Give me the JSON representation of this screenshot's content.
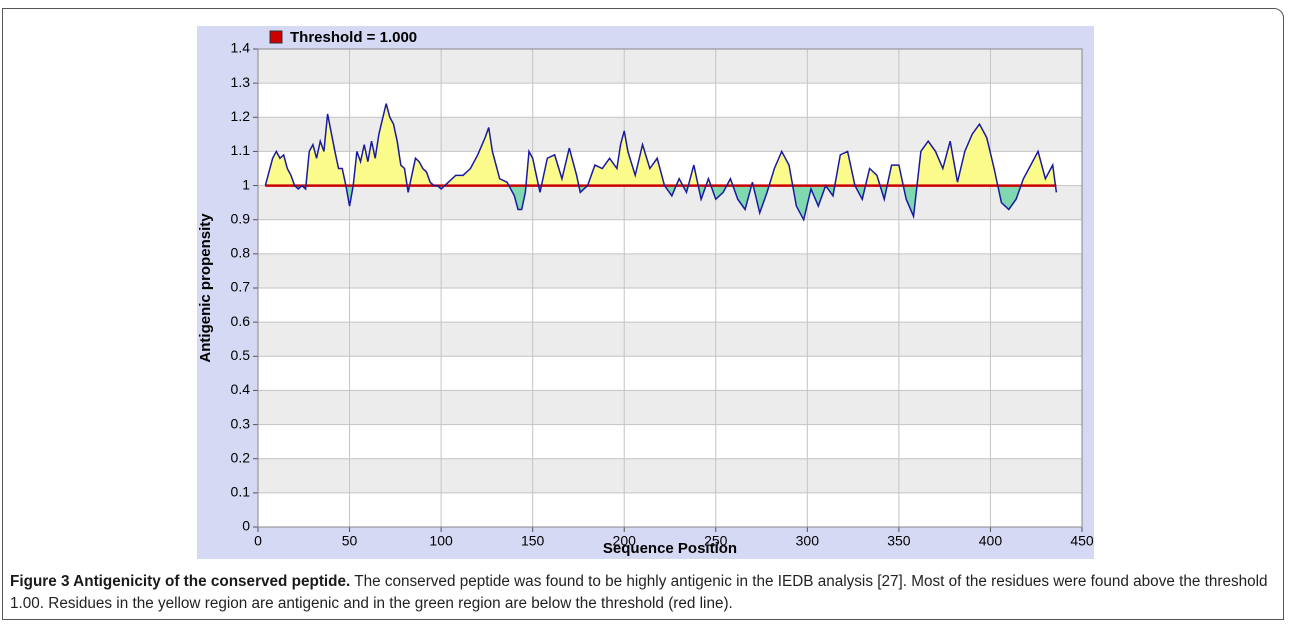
{
  "chart_data": {
    "type": "line",
    "x_label": "Sequence Position",
    "y_label": "Antigenic propensity",
    "xlim": [
      0,
      450
    ],
    "xticks": [
      0,
      50,
      100,
      150,
      200,
      250,
      300,
      350,
      400,
      450
    ],
    "ylim": [
      0,
      1.4
    ],
    "yticks": [
      0,
      0.1,
      0.2,
      0.3,
      0.4,
      0.5,
      0.6,
      0.7,
      0.8,
      0.9,
      1,
      1.1,
      1.2,
      1.3,
      1.4
    ],
    "grid": true,
    "threshold": {
      "name": "Threshold  = 1.000",
      "value": 1,
      "color": "#cc0000"
    },
    "line_color": "#1a1aa0",
    "above_color": "#fbfb8c",
    "below_color": "#7fd8b0",
    "x": [
      4,
      8,
      10,
      12,
      14,
      16,
      18,
      20,
      22,
      24,
      26,
      28,
      30,
      32,
      34,
      36,
      38,
      42,
      44,
      46,
      48,
      50,
      52,
      54,
      56,
      58,
      60,
      62,
      64,
      66,
      70,
      72,
      74,
      76,
      78,
      80,
      82,
      84,
      86,
      88,
      90,
      92,
      94,
      96,
      98,
      100,
      104,
      108,
      112,
      116,
      120,
      124,
      126,
      128,
      132,
      136,
      140,
      142,
      144,
      146,
      148,
      150,
      152,
      154,
      158,
      162,
      166,
      170,
      174,
      176,
      180,
      184,
      188,
      192,
      196,
      198,
      200,
      202,
      206,
      210,
      214,
      218,
      222,
      226,
      230,
      234,
      238,
      242,
      246,
      250,
      254,
      258,
      262,
      266,
      270,
      274,
      278,
      282,
      286,
      290,
      294,
      298,
      302,
      306,
      310,
      314,
      318,
      322,
      326,
      330,
      334,
      338,
      342,
      346,
      350,
      354,
      358,
      362,
      366,
      370,
      374,
      378,
      382,
      386,
      390,
      394,
      398,
      402,
      406,
      410,
      414,
      418,
      422,
      426,
      430,
      434,
      436
    ],
    "values": [
      1.0,
      1.08,
      1.1,
      1.08,
      1.09,
      1.05,
      1.03,
      1.0,
      0.99,
      1.0,
      0.99,
      1.1,
      1.12,
      1.08,
      1.13,
      1.1,
      1.21,
      1.1,
      1.05,
      1.05,
      1.0,
      0.94,
      1.0,
      1.1,
      1.07,
      1.12,
      1.07,
      1.13,
      1.08,
      1.15,
      1.24,
      1.2,
      1.18,
      1.13,
      1.06,
      1.05,
      0.98,
      1.03,
      1.08,
      1.07,
      1.05,
      1.04,
      1.01,
      1.0,
      1.0,
      0.99,
      1.01,
      1.03,
      1.03,
      1.05,
      1.09,
      1.14,
      1.17,
      1.1,
      1.02,
      1.01,
      0.97,
      0.93,
      0.93,
      0.98,
      1.1,
      1.08,
      1.03,
      0.98,
      1.08,
      1.09,
      1.02,
      1.11,
      1.03,
      0.98,
      1.0,
      1.06,
      1.05,
      1.08,
      1.05,
      1.12,
      1.16,
      1.1,
      1.03,
      1.12,
      1.05,
      1.08,
      1.0,
      0.97,
      1.02,
      0.98,
      1.06,
      0.96,
      1.02,
      0.96,
      0.98,
      1.02,
      0.96,
      0.93,
      1.01,
      0.92,
      0.98,
      1.05,
      1.1,
      1.06,
      0.94,
      0.9,
      0.99,
      0.94,
      1.0,
      0.97,
      1.09,
      1.1,
      1.0,
      0.96,
      1.05,
      1.03,
      0.96,
      1.06,
      1.06,
      0.96,
      0.91,
      1.1,
      1.13,
      1.1,
      1.05,
      1.13,
      1.01,
      1.1,
      1.15,
      1.18,
      1.14,
      1.05,
      0.95,
      0.93,
      0.96,
      1.02,
      1.06,
      1.1,
      1.02,
      1.06,
      0.98
    ]
  },
  "caption": {
    "label": "Figure 3 Antigenicity of the conserved peptide.",
    "text": "The conserved peptide was found to be highly antigenic in the IEDB analysis [27]. Most of the residues were found above the threshold 1.00. Residues in the yellow region are antigenic and in the green region are below the threshold (red line)."
  }
}
